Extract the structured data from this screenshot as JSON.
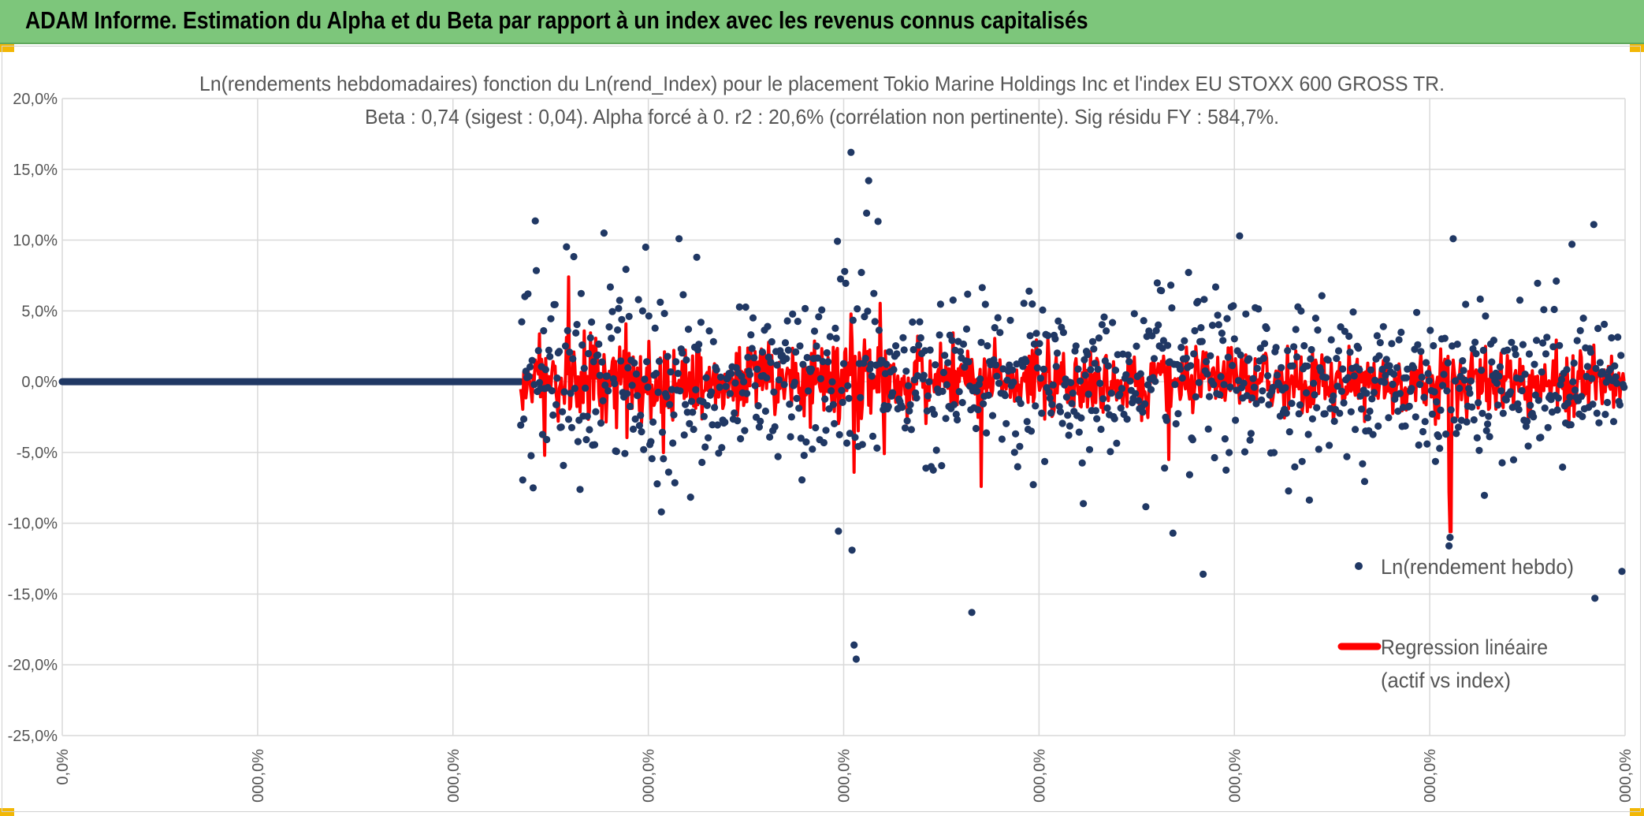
{
  "header": {
    "title": "ADAM Informe. Estimation du Alpha et du Beta par rapport à un index avec les revenus connus capitalisés"
  },
  "colors": {
    "header_bg": "#7dc67b",
    "accent_corner": "#f2b705",
    "scatter": "#203864",
    "regression": "#ff0000",
    "grid": "#d9d9d9"
  },
  "chart_data": {
    "type": "scatter",
    "title_line1": "Ln(rendements hebdomadaires) fonction du Ln(rend_Index) pour le placement Tokio Marine Holdings Inc et l'index EU STOXX 600 GROSS TR.",
    "title_line2": "Beta : 0,74 (sigest : 0,04). Alpha forcé à 0. r2 : 20,6% (corrélation non pertinente). Sig résidu FY : 584,7%.",
    "ylim": [
      -25,
      20
    ],
    "y_ticks": [
      {
        "value": 20,
        "label": "20,0%"
      },
      {
        "value": 15,
        "label": "15,0%"
      },
      {
        "value": 10,
        "label": "10,0%"
      },
      {
        "value": 5,
        "label": "5,0%"
      },
      {
        "value": 0,
        "label": "0,0%"
      },
      {
        "value": -5,
        "label": "-5,0%"
      },
      {
        "value": -10,
        "label": "-10,0%"
      },
      {
        "value": -15,
        "label": "-15,0%"
      },
      {
        "value": -20,
        "label": "-20,0%"
      },
      {
        "value": -25,
        "label": "-25,0%"
      }
    ],
    "x_tick_labels": [
      "0,0%",
      "000,0%",
      "000,0%",
      "000,0%",
      "000,0%",
      "000,0%",
      "000,0%",
      "000,0%",
      "000,0%"
    ],
    "n_weeks": 1500,
    "data_start_week": 440,
    "series": [
      {
        "name": "Ln(rendement hebdo)",
        "kind": "markers",
        "color": "#203864"
      },
      {
        "name": "Regression linéaire (actif vs index)",
        "kind": "line",
        "color": "#ff0000"
      }
    ],
    "legend": {
      "position": "right",
      "entry1": "Ln(rendement hebdo)",
      "entry2_line1": "Regression linéaire",
      "entry2_line2": "(actif vs index)"
    },
    "notable_points": [
      {
        "week": 757,
        "value": 16.2
      },
      {
        "week": 774,
        "value": 14.2
      },
      {
        "week": 772,
        "value": 11.9
      },
      {
        "week": 520,
        "value": 10.5
      },
      {
        "week": 1130,
        "value": 10.3
      },
      {
        "week": 1335,
        "value": 10.1
      },
      {
        "week": 1470,
        "value": 11.1
      },
      {
        "week": 1449,
        "value": 9.7
      },
      {
        "week": 592,
        "value": 10.1
      },
      {
        "week": 560,
        "value": 9.5
      },
      {
        "week": 758,
        "value": -11.9
      },
      {
        "week": 760,
        "value": -18.6
      },
      {
        "week": 762,
        "value": -19.6
      },
      {
        "week": 873,
        "value": -16.3
      },
      {
        "week": 1095,
        "value": -13.6
      },
      {
        "week": 1066,
        "value": -10.7
      },
      {
        "week": 1331,
        "value": -11.6
      },
      {
        "week": 1332,
        "value": -11.0
      },
      {
        "week": 1471,
        "value": -15.3
      },
      {
        "week": 1497,
        "value": -13.4
      },
      {
        "week": 575,
        "value": -9.2
      },
      {
        "week": 447,
        "value": 6.2
      },
      {
        "week": 452,
        "value": -7.5
      }
    ]
  }
}
